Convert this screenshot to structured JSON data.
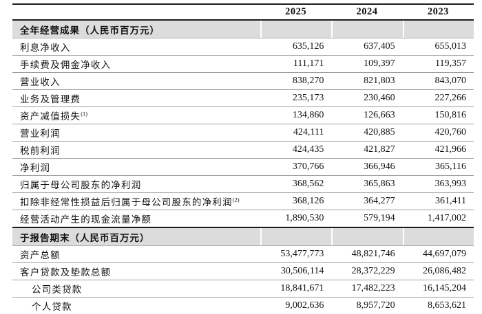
{
  "table": {
    "years": [
      "2025",
      "2024",
      "2023"
    ],
    "sections": [
      {
        "title": "全年经营成果（人民币百万元）",
        "rows": [
          {
            "label": "利息净收入",
            "values": [
              "635,126",
              "637,405",
              "655,013"
            ]
          },
          {
            "label": "手续费及佣金净收入",
            "values": [
              "111,171",
              "109,397",
              "119,357"
            ]
          },
          {
            "label": "营业收入",
            "values": [
              "838,270",
              "821,803",
              "843,070"
            ]
          },
          {
            "label": "业务及管理费",
            "values": [
              "235,173",
              "230,460",
              "227,266"
            ]
          },
          {
            "label": "资产减值损失",
            "sup": "(1)",
            "values": [
              "134,860",
              "126,663",
              "150,816"
            ]
          },
          {
            "label": "营业利润",
            "values": [
              "424,111",
              "420,885",
              "420,760"
            ]
          },
          {
            "label": "税前利润",
            "values": [
              "424,435",
              "421,827",
              "421,966"
            ]
          },
          {
            "label": "净利润",
            "values": [
              "370,766",
              "366,946",
              "365,116"
            ]
          },
          {
            "label": "归属于母公司股东的净利润",
            "values": [
              "368,562",
              "365,863",
              "363,993"
            ]
          },
          {
            "label": "扣除非经常性损益后归属于母公司股东的净利润",
            "sup": "(2)",
            "values": [
              "368,126",
              "364,277",
              "361,411"
            ]
          },
          {
            "label": "经营活动产生的现金流量净额",
            "values": [
              "1,890,530",
              "579,194",
              "1,417,002"
            ]
          }
        ]
      },
      {
        "title": "于报告期末（人民币百万元）",
        "rows": [
          {
            "label": "资产总额",
            "values": [
              "53,477,773",
              "48,821,746",
              "44,697,079"
            ]
          },
          {
            "label": "客户贷款及垫款总额",
            "values": [
              "30,506,114",
              "28,372,229",
              "26,086,482"
            ]
          },
          {
            "label": "公司类贷款",
            "indent": true,
            "values": [
              "18,841,671",
              "17,482,223",
              "16,145,204"
            ]
          },
          {
            "label": "个人贷款",
            "indent": true,
            "values": [
              "9,002,636",
              "8,957,720",
              "8,653,621"
            ]
          }
        ]
      }
    ],
    "colors": {
      "section_band_bg": "#dcdcdc",
      "heavy_rule": "#1c1c1c",
      "light_rule": "#9c9c9c"
    }
  }
}
